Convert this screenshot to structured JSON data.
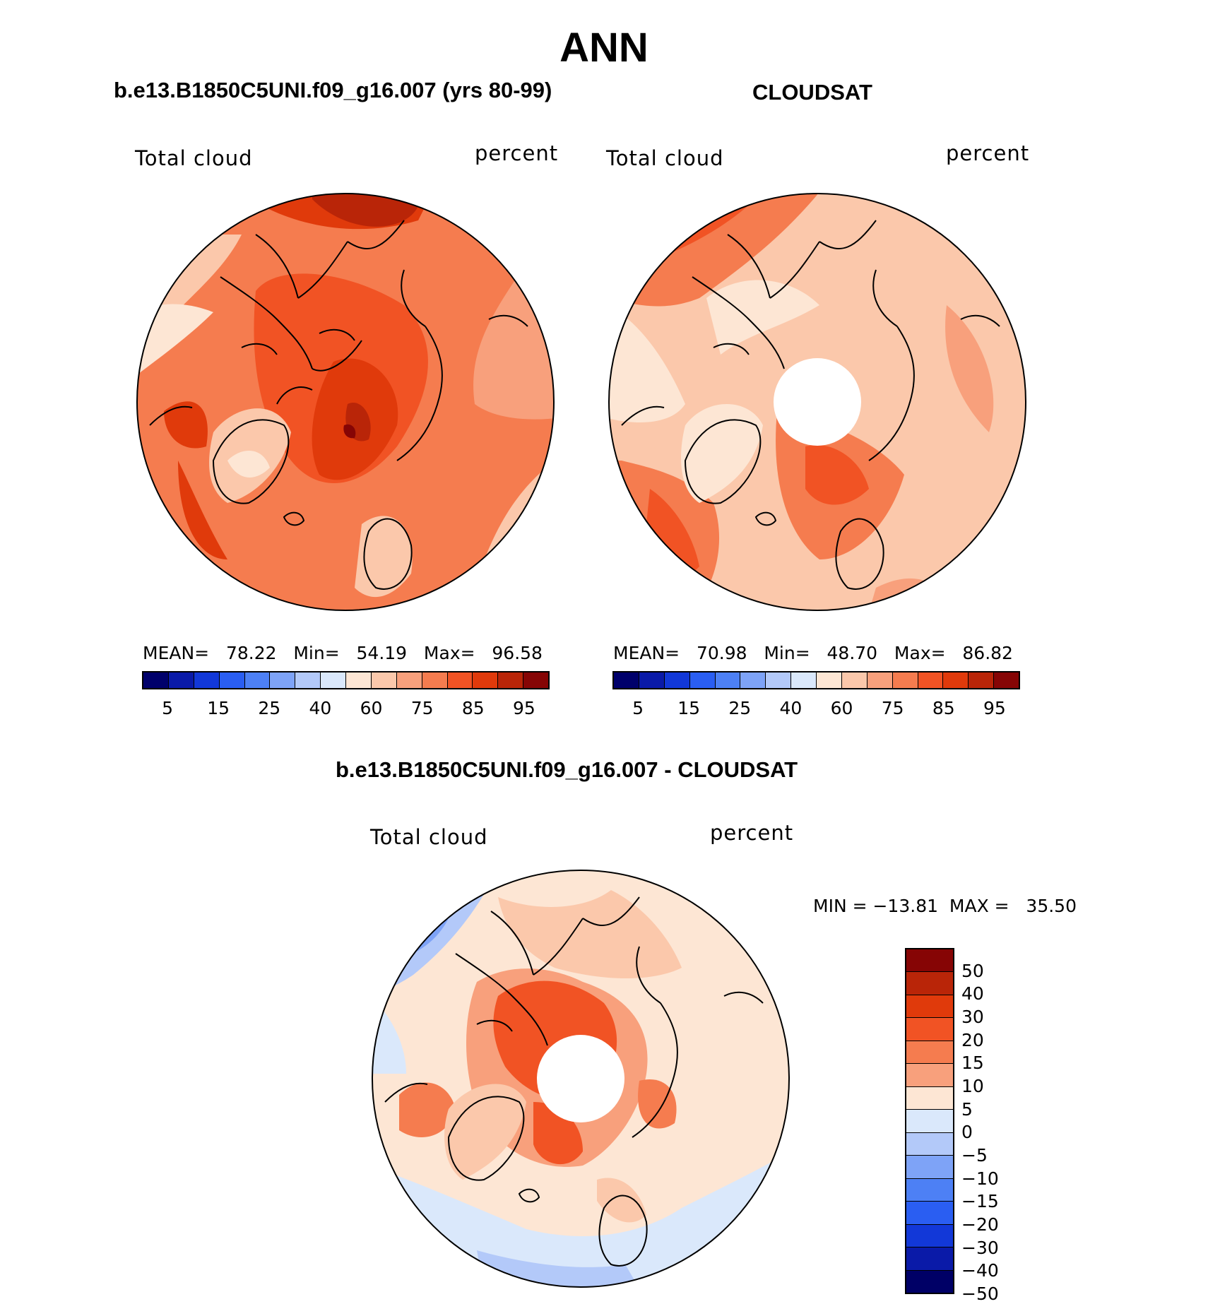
{
  "page_title": "ANN",
  "panels": [
    {
      "subtitle": "b.e13.B1850C5UNI.f09_g16.007 (yrs 80-99)",
      "variable": "Total cloud",
      "units": "percent",
      "stats": "MEAN=   78.22   Min=   54.19   Max=   96.58",
      "mean": 78.22,
      "min": 54.19,
      "max": 96.58
    },
    {
      "subtitle": "CLOUDSAT",
      "variable": "Total cloud",
      "units": "percent",
      "stats": "MEAN=   70.98   Min=   48.70   Max=   86.82",
      "mean": 70.98,
      "min": 48.7,
      "max": 86.82
    },
    {
      "subtitle": "b.e13.B1850C5UNI.f09_g16.007 - CLOUDSAT",
      "variable": "Total cloud",
      "units": "percent",
      "stats": "MIN = −13.81  MAX =   35.50",
      "min": -13.81,
      "max": 35.5
    }
  ],
  "colorbar_abs": {
    "colors": [
      "#00006b",
      "#0a1aa8",
      "#1238d8",
      "#2a5ef2",
      "#4d80f5",
      "#7ea3f7",
      "#b3c9f9",
      "#dae8fb",
      "#fde6d4",
      "#fbc8ab",
      "#f8a07c",
      "#f57c4f",
      "#f15324",
      "#e03a0b",
      "#b92508",
      "#860505"
    ],
    "tick_labels": [
      "5",
      "15",
      "25",
      "40",
      "60",
      "75",
      "85",
      "95"
    ]
  },
  "colorbar_diff": {
    "colors": [
      "#860505",
      "#b92508",
      "#e03a0b",
      "#f15324",
      "#f57c4f",
      "#f8a07c",
      "#fde6d4",
      "#dae8fb",
      "#b3c9f9",
      "#7ea3f7",
      "#4d80f5",
      "#2a5ef2",
      "#1238d8",
      "#0a1aa8",
      "#000066"
    ],
    "tick_labels": [
      "50",
      "40",
      "30",
      "20",
      "15",
      "10",
      "5",
      "0",
      "−5",
      "−10",
      "−15",
      "−20",
      "−30",
      "−40",
      "−50"
    ]
  }
}
